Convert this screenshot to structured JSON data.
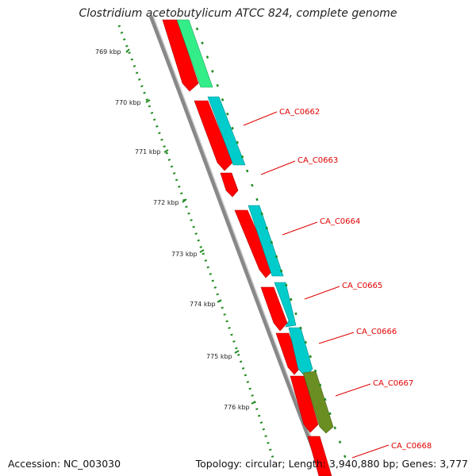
{
  "title": "Clostridium acetobutylicum ATCC 824, complete genome",
  "accession_text": "Accession: NC_003030",
  "topology_text": "Topology: circular; Length: 3,940,880 bp; Genes: 3,777",
  "ruler_labels": [
    "769 kbp",
    "770 kbp",
    "771 kbp",
    "772 kbp",
    "773 kbp",
    "774 kbp",
    "775 kbp",
    "776 kbp"
  ],
  "gene_labels": [
    "CA_C0662",
    "CA_C0663",
    "CA_C0664",
    "CA_C0665",
    "CA_C0666",
    "CA_C0667",
    "CA_C0668"
  ],
  "colors": {
    "cds_forward": "#ff0000",
    "cds_cyan": "#00cccc",
    "cds_green": "#33ee88",
    "cds_olive": "#6b8e23",
    "backbone": "#888888",
    "ruler": "#228b22",
    "label": "#e00000"
  }
}
